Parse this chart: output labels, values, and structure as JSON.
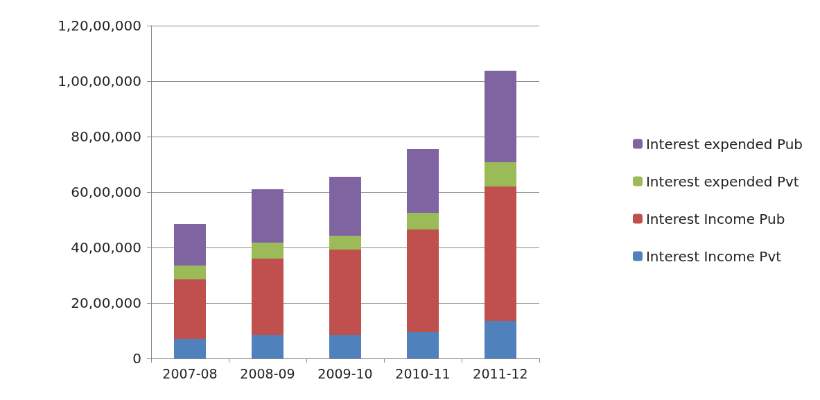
{
  "chart_data": {
    "type": "bar",
    "stacked": true,
    "categories": [
      "2007-08",
      "2008-09",
      "2009-10",
      "2010-11",
      "2011-12"
    ],
    "series": [
      {
        "name": "Interest Income Pvt",
        "color": "#4f81bd",
        "values": [
          700000,
          850000,
          850000,
          950000,
          1350000
        ]
      },
      {
        "name": "Interest Income Pub",
        "color": "#c0504d",
        "values": [
          2150000,
          2750000,
          3075000,
          3700000,
          4850000
        ]
      },
      {
        "name": "Interest expended Pvt",
        "color": "#9bbb59",
        "values": [
          500000,
          575000,
          500000,
          600000,
          875000
        ]
      },
      {
        "name": "Interest expended Pub",
        "color": "#8064a2",
        "values": [
          1500000,
          1925000,
          2125000,
          2300000,
          3300000
        ]
      }
    ],
    "ylim": [
      0,
      12000000
    ],
    "yticks": [
      0,
      {
        "value": 2000000,
        "label": "20,00,000"
      },
      {
        "value": 4000000,
        "label": "40,00,000"
      },
      {
        "value": 6000000,
        "label": "60,00,000"
      },
      {
        "value": 8000000,
        "label": "80,00,000"
      },
      {
        "value": 10000000,
        "label": "1,00,00,000"
      },
      {
        "value": 12000000,
        "label": "1,20,00,000"
      }
    ],
    "grid": "y",
    "legend": "right"
  }
}
